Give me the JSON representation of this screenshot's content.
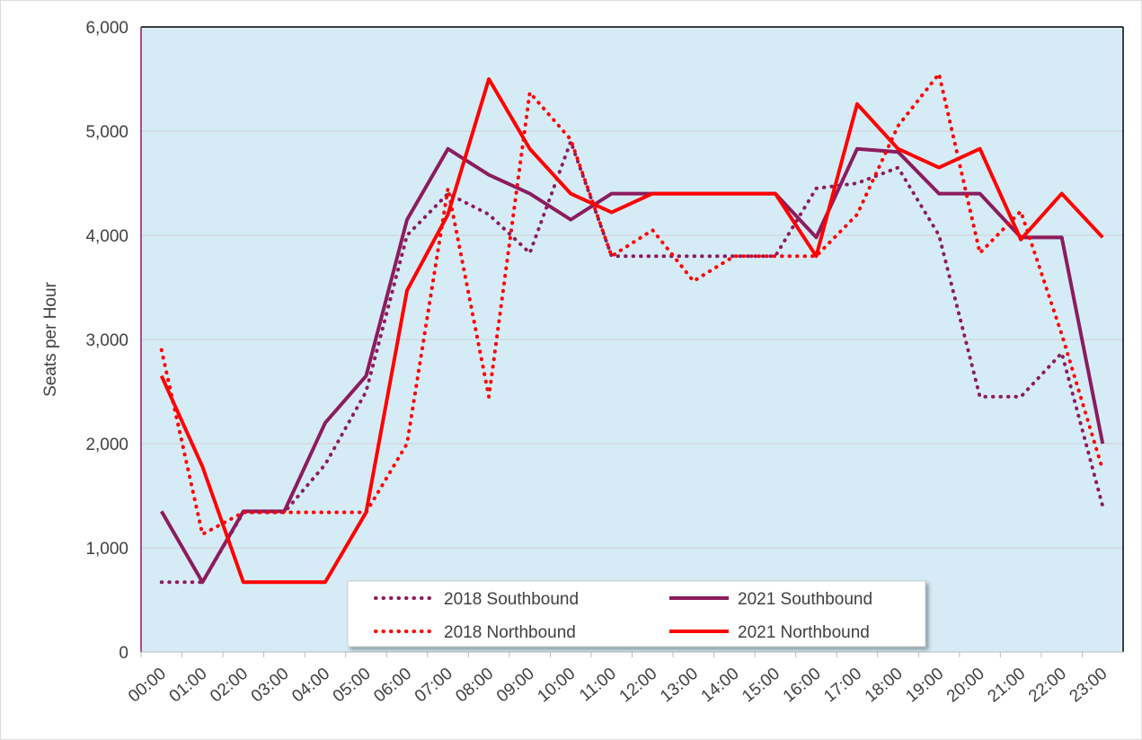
{
  "chart_data": {
    "type": "line",
    "y_label": "Seats per Hour",
    "categories": [
      "00:00",
      "01:00",
      "02:00",
      "03:00",
      "04:00",
      "05:00",
      "06:00",
      "07:00",
      "08:00",
      "09:00",
      "10:00",
      "11:00",
      "12:00",
      "13:00",
      "14:00",
      "15:00",
      "16:00",
      "17:00",
      "18:00",
      "19:00",
      "20:00",
      "21:00",
      "22:00",
      "23:00"
    ],
    "series": [
      {
        "name": "2018 Southbound",
        "color": "#8c1c5e",
        "style": "dotted",
        "values": [
          670,
          670,
          1340,
          1340,
          1800,
          2500,
          4000,
          4400,
          4200,
          3830,
          4900,
          3800,
          3800,
          3800,
          3800,
          3800,
          4450,
          4500,
          4650,
          4000,
          2450,
          2450,
          2870,
          1400
        ]
      },
      {
        "name": "2021 Southbound",
        "color": "#8c1c5e",
        "style": "solid",
        "values": [
          1350,
          670,
          1350,
          1350,
          2200,
          2650,
          4150,
          4830,
          4580,
          4400,
          4150,
          4400,
          4400,
          4400,
          4400,
          4400,
          3980,
          4830,
          4800,
          4400,
          4400,
          3980,
          3980,
          2000
        ]
      },
      {
        "name": "2018 Northbound",
        "color": "#ff0000",
        "style": "dotted",
        "values": [
          2900,
          1130,
          1340,
          1340,
          1340,
          1340,
          2000,
          4450,
          2450,
          5370,
          4920,
          3800,
          4050,
          3560,
          3800,
          3800,
          3800,
          4200,
          5050,
          5550,
          3830,
          4230,
          3050,
          1750
        ]
      },
      {
        "name": "2021 Northbound",
        "color": "#ff0000",
        "style": "solid",
        "values": [
          2650,
          1780,
          670,
          670,
          670,
          1340,
          3470,
          4200,
          5500,
          4830,
          4400,
          4220,
          4400,
          4400,
          4400,
          4400,
          3800,
          5260,
          4830,
          4650,
          4830,
          3960,
          4400,
          3980
        ]
      }
    ],
    "ylim": [
      0,
      6000
    ],
    "yticks": [
      0,
      {
        "value": 1000,
        "label": "1,000"
      },
      {
        "value": 2000,
        "label": "2,000"
      },
      {
        "value": 3000,
        "label": "3,000"
      },
      {
        "value": 4000,
        "label": "4,000"
      },
      {
        "value": 5000,
        "label": "5,000"
      },
      {
        "value": 6000,
        "label": "6,000"
      }
    ],
    "grid": true,
    "legend": "bottom-center"
  }
}
